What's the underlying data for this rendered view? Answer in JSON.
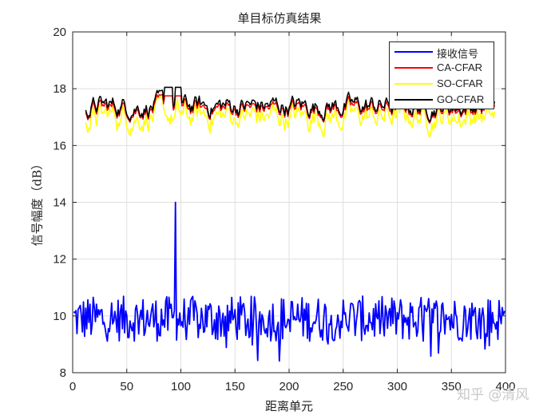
{
  "chart_data": {
    "type": "line",
    "title": "单目标仿真结果",
    "xlabel": "距离单元",
    "ylabel": "信号幅度（dB）",
    "xlim": [
      0,
      400
    ],
    "ylim": [
      8,
      20
    ],
    "xticks": [
      0,
      50,
      100,
      150,
      200,
      250,
      300,
      350,
      400
    ],
    "yticks": [
      8,
      10,
      12,
      14,
      16,
      18,
      20
    ],
    "grid": true,
    "legend_position": "northeast",
    "target": {
      "range_cell": 95,
      "amplitude_db": 14.0
    },
    "series": [
      {
        "name": "接收信号",
        "color": "#0000FF",
        "x_range": [
          1,
          400
        ],
        "baseline_db": 9.9,
        "noise_range_db": [
          8.4,
          10.9
        ],
        "peak": {
          "x": 95,
          "y": 14.0
        }
      },
      {
        "name": "CA-CFAR",
        "color": "#FF0000",
        "x_range": [
          12,
          390
        ],
        "baseline_db": 17.3,
        "range_db": [
          17.0,
          17.8
        ],
        "bump": {
          "x_range": [
            85,
            100
          ],
          "y": 17.75
        }
      },
      {
        "name": "SO-CFAR",
        "color": "#FFFF00",
        "x_range": [
          12,
          390
        ],
        "baseline_db": 17.15,
        "range_db": [
          16.8,
          17.5
        ]
      },
      {
        "name": "GO-CFAR",
        "color": "#000000",
        "x_range": [
          12,
          390
        ],
        "baseline_db": 17.35,
        "range_db": [
          17.0,
          18.1
        ],
        "bump": {
          "x_range": [
            85,
            100
          ],
          "y": 18.05
        }
      }
    ]
  },
  "legend": {
    "items": [
      {
        "label": "接收信号",
        "color": "#0000FF"
      },
      {
        "label": "CA-CFAR",
        "color": "#FF0000"
      },
      {
        "label": "SO-CFAR",
        "color": "#FFFF00"
      },
      {
        "label": "GO-CFAR",
        "color": "#000000"
      }
    ]
  },
  "watermark": "知乎 @清风"
}
